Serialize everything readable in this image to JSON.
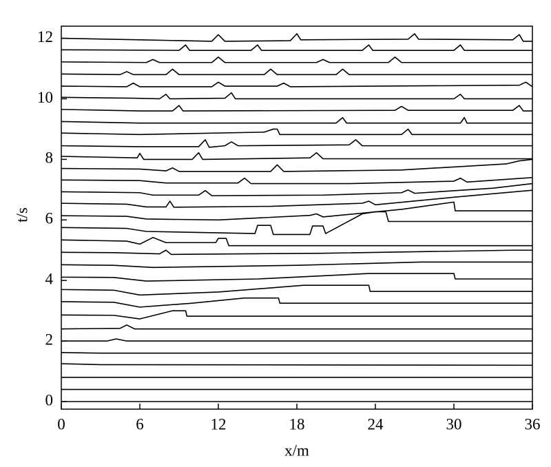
{
  "chart_data": {
    "type": "line",
    "xlabel": "x/m",
    "ylabel": "t/s",
    "color": "#000000",
    "xlim": [
      0,
      36
    ],
    "xticks": [
      0,
      6,
      12,
      18,
      24,
      30,
      36
    ],
    "ylim": [
      -0.25,
      12.4
    ],
    "yticks": [
      0,
      2,
      4,
      6,
      8,
      10,
      12
    ],
    "series": [
      {
        "x": [
          0,
          36
        ],
        "values": [
          0,
          0
        ]
      },
      {
        "x": [
          0,
          36
        ],
        "values": [
          0.4,
          0.4
        ]
      },
      {
        "x": [
          0,
          36
        ],
        "values": [
          0.8,
          0.8
        ]
      },
      {
        "x": [
          0,
          3,
          36
        ],
        "values": [
          1.25,
          1.22,
          1.2
        ]
      },
      {
        "x": [
          0,
          3,
          36
        ],
        "values": [
          1.62,
          1.6,
          1.6
        ]
      },
      {
        "x": [
          0,
          3.5,
          4.2,
          5,
          36
        ],
        "values": [
          2.0,
          2.0,
          2.07,
          2.0,
          2.0
        ]
      },
      {
        "x": [
          0,
          4.5,
          5,
          5.6,
          36
        ],
        "values": [
          2.4,
          2.42,
          2.53,
          2.4,
          2.4
        ]
      },
      {
        "x": [
          0,
          4,
          6,
          8.5,
          9.5,
          9.6,
          36
        ],
        "values": [
          2.86,
          2.85,
          2.73,
          3.0,
          3.0,
          2.82,
          2.82
        ]
      },
      {
        "x": [
          0,
          4,
          6,
          10,
          14,
          16.6,
          16.7,
          36
        ],
        "values": [
          3.3,
          3.28,
          3.12,
          3.25,
          3.42,
          3.42,
          3.25,
          3.25
        ]
      },
      {
        "x": [
          0,
          4,
          6,
          12,
          18.5,
          23.5,
          23.6,
          36
        ],
        "values": [
          3.7,
          3.68,
          3.52,
          3.62,
          3.84,
          3.84,
          3.64,
          3.64
        ]
      },
      {
        "x": [
          0,
          4,
          6.5,
          15,
          23.5,
          30,
          30.1,
          36
        ],
        "values": [
          4.11,
          4.1,
          3.98,
          4.05,
          4.23,
          4.23,
          4.05,
          4.05
        ]
      },
      {
        "x": [
          0,
          4,
          7,
          18,
          27.5,
          36
        ],
        "values": [
          4.52,
          4.5,
          4.43,
          4.5,
          4.61,
          4.61
        ]
      },
      {
        "x": [
          0,
          4,
          7.5,
          8,
          8.4,
          20,
          34.5,
          36
        ],
        "values": [
          4.93,
          4.92,
          4.88,
          5.0,
          4.86,
          4.9,
          5.0,
          5.0
        ]
      },
      {
        "x": [
          0,
          5,
          6,
          7,
          8,
          11.8,
          12,
          12.6,
          12.8,
          36
        ],
        "values": [
          5.34,
          5.3,
          5.2,
          5.42,
          5.25,
          5.25,
          5.39,
          5.39,
          5.15,
          5.15
        ]
      },
      {
        "x": [
          0,
          5,
          6.5,
          14.8,
          15,
          16,
          16.2,
          19,
          19.2,
          20,
          20.2,
          23,
          24,
          24.8,
          25,
          36
        ],
        "values": [
          5.75,
          5.72,
          5.62,
          5.55,
          5.82,
          5.82,
          5.52,
          5.52,
          5.8,
          5.8,
          5.55,
          6.2,
          6.27,
          6.27,
          5.95,
          5.95
        ]
      },
      {
        "x": [
          0,
          5,
          6.5,
          12,
          19,
          19.5,
          20,
          26,
          30,
          30.1,
          36
        ],
        "values": [
          6.14,
          6.12,
          6.03,
          6.0,
          6.15,
          6.2,
          6.1,
          6.35,
          6.59,
          6.3,
          6.3
        ]
      },
      {
        "x": [
          0,
          5,
          6.5,
          8,
          8.3,
          8.6,
          16,
          23,
          23.5,
          24,
          30,
          36
        ],
        "values": [
          6.55,
          6.52,
          6.43,
          6.43,
          6.62,
          6.42,
          6.45,
          6.55,
          6.62,
          6.5,
          6.75,
          6.98
        ]
      },
      {
        "x": [
          0,
          6,
          7,
          10.5,
          11,
          11.5,
          20,
          26,
          26.5,
          27,
          33,
          36
        ],
        "values": [
          6.93,
          6.9,
          6.82,
          6.82,
          6.97,
          6.8,
          6.82,
          6.9,
          6.99,
          6.88,
          7.05,
          7.2
        ]
      },
      {
        "x": [
          0,
          6,
          8,
          13.5,
          14,
          14.5,
          22,
          30,
          30.5,
          31,
          36
        ],
        "values": [
          7.32,
          7.3,
          7.22,
          7.22,
          7.38,
          7.2,
          7.2,
          7.28,
          7.38,
          7.25,
          7.4
        ]
      },
      {
        "x": [
          0,
          6,
          8,
          8.5,
          9,
          16,
          16.5,
          17,
          26,
          34,
          35,
          36
        ],
        "values": [
          7.7,
          7.68,
          7.62,
          7.72,
          7.6,
          7.6,
          7.82,
          7.6,
          7.65,
          7.85,
          7.95,
          8.0
        ]
      },
      {
        "x": [
          0,
          5.8,
          6,
          6.3,
          10,
          10.5,
          10.8,
          19,
          19.5,
          20,
          36
        ],
        "values": [
          8.1,
          8.05,
          8.2,
          8.0,
          8.0,
          8.22,
          8.0,
          8.05,
          8.22,
          8.02,
          8.02
        ]
      },
      {
        "x": [
          0,
          6,
          10.5,
          11,
          11.3,
          12.5,
          13,
          13.5,
          22,
          22.5,
          23,
          36
        ],
        "values": [
          8.45,
          8.42,
          8.42,
          8.65,
          8.4,
          8.45,
          8.58,
          8.45,
          8.48,
          8.65,
          8.45,
          8.45
        ]
      },
      {
        "x": [
          0,
          6,
          15.5,
          16.2,
          16.5,
          16.7,
          26,
          26.5,
          26.8,
          36
        ],
        "values": [
          8.87,
          8.82,
          8.9,
          9.0,
          9.0,
          8.82,
          8.82,
          9.0,
          8.82,
          8.82
        ]
      },
      {
        "x": [
          0,
          6,
          21,
          21.5,
          21.8,
          30.5,
          30.8,
          31,
          36
        ],
        "values": [
          9.25,
          9.2,
          9.2,
          9.38,
          9.2,
          9.2,
          9.38,
          9.2,
          9.2
        ]
      },
      {
        "x": [
          0,
          6,
          8.5,
          9,
          9.3,
          25.5,
          26,
          26.5,
          34.5,
          35,
          35.3,
          36
        ],
        "values": [
          9.65,
          9.6,
          9.6,
          9.78,
          9.6,
          9.62,
          9.75,
          9.62,
          9.62,
          9.78,
          9.6,
          9.6
        ]
      },
      {
        "x": [
          0,
          5.5,
          7.5,
          8,
          8.3,
          12.5,
          13,
          13.3,
          30,
          30.5,
          30.8,
          36
        ],
        "values": [
          10.05,
          10.02,
          10.0,
          10.15,
          10.0,
          10.02,
          10.2,
          10.0,
          10.0,
          10.15,
          10.0,
          10.0
        ]
      },
      {
        "x": [
          0,
          5,
          5.5,
          6,
          11.5,
          12,
          12.5,
          16.5,
          17,
          17.5,
          35,
          35.5,
          36
        ],
        "values": [
          10.42,
          10.4,
          10.52,
          10.4,
          10.4,
          10.55,
          10.42,
          10.42,
          10.52,
          10.4,
          10.45,
          10.55,
          10.4
        ]
      },
      {
        "x": [
          0,
          4.5,
          5,
          5.5,
          8,
          8.5,
          9,
          15.5,
          16,
          16.5,
          21,
          21.5,
          22,
          36
        ],
        "values": [
          10.82,
          10.8,
          10.9,
          10.8,
          10.8,
          10.98,
          10.8,
          10.8,
          10.98,
          10.8,
          10.8,
          10.98,
          10.8,
          10.8
        ]
      },
      {
        "x": [
          0,
          6.5,
          7,
          7.5,
          11.5,
          12,
          12.5,
          19.5,
          20,
          20.5,
          25,
          25.5,
          26,
          36
        ],
        "values": [
          11.22,
          11.2,
          11.3,
          11.2,
          11.2,
          11.38,
          11.2,
          11.2,
          11.3,
          11.2,
          11.2,
          11.38,
          11.2,
          11.2
        ]
      },
      {
        "x": [
          0,
          9,
          9.5,
          9.8,
          14.5,
          15,
          15.3,
          23,
          23.5,
          23.8,
          30,
          30.5,
          30.8,
          36
        ],
        "values": [
          11.62,
          11.6,
          11.78,
          11.6,
          11.6,
          11.78,
          11.6,
          11.6,
          11.78,
          11.6,
          11.6,
          11.78,
          11.6,
          11.6
        ]
      },
      {
        "x": [
          0,
          6,
          11.5,
          12,
          12.5,
          17.5,
          18,
          18.3,
          26.5,
          27,
          27.3,
          34.5,
          35,
          35.3,
          36
        ],
        "values": [
          12.0,
          11.95,
          11.9,
          12.12,
          11.9,
          11.92,
          12.15,
          11.95,
          11.97,
          12.15,
          11.97,
          11.95,
          12.12,
          11.9,
          11.9
        ]
      }
    ]
  }
}
